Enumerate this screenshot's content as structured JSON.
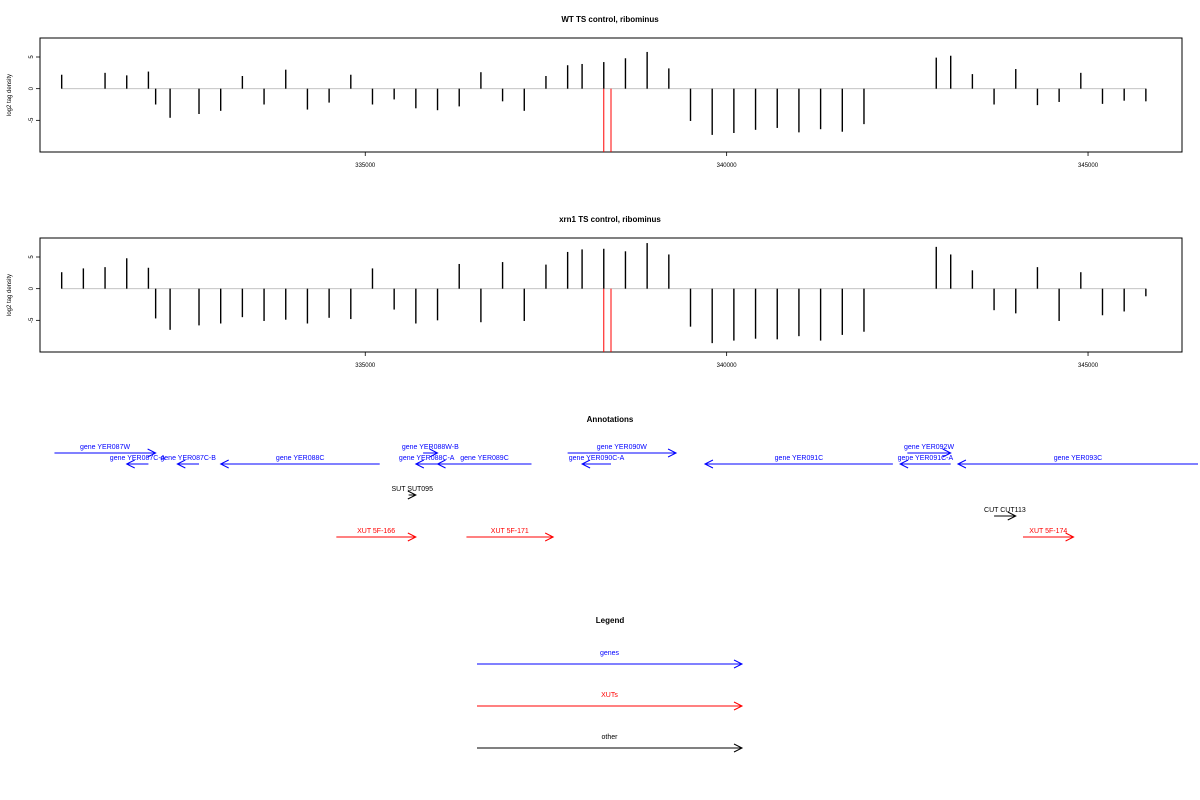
{
  "colors": {
    "gene": "#0000ff",
    "xut": "#ff0000",
    "other": "#000000",
    "marker": "#ff0000",
    "bars": "#000000"
  },
  "chart_data": [
    {
      "type": "bar",
      "title": "WT TS control, ribominus",
      "ylabel": "log2 tag density",
      "xlim": [
        330500,
        346300
      ],
      "ylim": [
        -10,
        8
      ],
      "x_ticks": [
        "335000",
        "340000",
        "345000"
      ],
      "y_ticks": [
        "5",
        "0",
        "-5"
      ],
      "markers": [
        338300,
        338400
      ],
      "series": [
        {
          "x": [
            330800,
            331400,
            331700,
            332000,
            332100,
            332300,
            332700,
            333000,
            333300,
            333600,
            333900,
            334200,
            334500,
            334800,
            335100,
            335400,
            335700,
            336000,
            336300,
            336600,
            336900,
            337200,
            337500,
            337800,
            338000,
            338300,
            338600,
            338900,
            339200,
            339500,
            339800,
            340100,
            340400,
            340700,
            341000,
            341300,
            341600,
            341900,
            342500,
            342900,
            343100,
            343400,
            343700,
            344000,
            344300,
            344600,
            344900,
            345200,
            345500,
            345800
          ],
          "y": [
            2.2,
            2.5,
            2.1,
            2.7,
            -2.5,
            -4.6,
            -4.0,
            -3.5,
            2.0,
            -2.5,
            3.0,
            -3.3,
            -2.2,
            2.2,
            -2.5,
            -1.7,
            -3.1,
            -3.4,
            -2.8,
            2.6,
            -2.0,
            -3.5,
            2.0,
            3.7,
            3.9,
            4.2,
            4.8,
            5.8,
            3.2,
            -5.1,
            -7.3,
            -7.0,
            -6.5,
            -6.2,
            -6.9,
            -6.4,
            -6.8,
            -5.6,
            0,
            4.9,
            5.2,
            2.3,
            -2.5,
            3.1,
            -2.6,
            -2.1,
            2.5,
            -2.4,
            -1.9,
            -2.0
          ]
        }
      ]
    },
    {
      "type": "bar",
      "title": "xrn1 TS control, ribominus",
      "ylabel": "log2 tag density",
      "xlim": [
        330500,
        346300
      ],
      "ylim": [
        -10,
        8
      ],
      "x_ticks": [
        "335000",
        "340000",
        "345000"
      ],
      "y_ticks": [
        "5",
        "0",
        "-5"
      ],
      "markers": [
        338300,
        338400
      ],
      "series": [
        {
          "x": [
            330800,
            331100,
            331400,
            331700,
            332000,
            332100,
            332300,
            332700,
            333000,
            333300,
            333600,
            333900,
            334200,
            334500,
            334800,
            335100,
            335400,
            335700,
            336000,
            336300,
            336600,
            336900,
            337200,
            337500,
            337800,
            338000,
            338300,
            338600,
            338900,
            339200,
            339500,
            339800,
            340100,
            340400,
            340700,
            341000,
            341300,
            341600,
            341900,
            342500,
            342900,
            343100,
            343400,
            343700,
            344000,
            344300,
            344600,
            344900,
            345200,
            345500,
            345800
          ],
          "y": [
            2.6,
            3.2,
            3.4,
            4.8,
            3.3,
            -4.7,
            -6.5,
            -5.8,
            -5.5,
            -4.5,
            -5.1,
            -4.9,
            -5.5,
            -4.6,
            -4.8,
            3.2,
            -3.3,
            -5.5,
            -5.0,
            3.9,
            -5.3,
            4.2,
            -5.1,
            3.8,
            5.8,
            6.2,
            6.3,
            5.9,
            7.2,
            5.4,
            -6.0,
            -8.6,
            -8.2,
            -7.9,
            -8.0,
            -7.5,
            -8.2,
            -7.3,
            -6.8,
            0,
            6.6,
            5.4,
            2.9,
            -3.4,
            -3.9,
            3.4,
            -5.1,
            2.6,
            -4.2,
            -3.6,
            -1.2
          ]
        }
      ]
    }
  ],
  "annotations": {
    "title": "Annotations",
    "features": [
      {
        "label": "gene YER087W",
        "cls": "gene",
        "row": 0,
        "start": 330700,
        "end": 332100,
        "strand": "+"
      },
      {
        "label": "gene YER087C-A",
        "cls": "gene",
        "row": 1,
        "start": 332000,
        "end": 331700,
        "strand": "-"
      },
      {
        "label": "gene YER087C-B",
        "cls": "gene",
        "row": 1,
        "start": 332700,
        "end": 332400,
        "strand": "-"
      },
      {
        "label": "gene YER088C",
        "cls": "gene",
        "row": 1,
        "start": 335200,
        "end": 333000,
        "strand": "-"
      },
      {
        "label": "gene YER088W-B",
        "cls": "gene",
        "row": 0,
        "start": 335800,
        "end": 336000,
        "strand": "+"
      },
      {
        "label": "gene YER088C-A",
        "cls": "gene",
        "row": 1,
        "start": 336000,
        "end": 335700,
        "strand": "-"
      },
      {
        "label": "gene YER089C",
        "cls": "gene",
        "row": 1,
        "start": 337300,
        "end": 336000,
        "strand": "-"
      },
      {
        "label": "gene YER090W",
        "cls": "gene",
        "row": 0,
        "start": 337800,
        "end": 339300,
        "strand": "+"
      },
      {
        "label": "gene YER090C-A",
        "cls": "gene",
        "row": 1,
        "start": 338400,
        "end": 338000,
        "strand": "-"
      },
      {
        "label": "gene YER091C",
        "cls": "gene",
        "row": 1,
        "start": 342300,
        "end": 339700,
        "strand": "-"
      },
      {
        "label": "gene YER091C-A",
        "cls": "gene",
        "row": 1,
        "start": 343100,
        "end": 342400,
        "strand": "-"
      },
      {
        "label": "gene YER092W",
        "cls": "gene",
        "row": 0,
        "start": 342500,
        "end": 343100,
        "strand": "+"
      },
      {
        "label": "gene YER093C",
        "cls": "gene",
        "row": 1,
        "start": 346700,
        "end": 343200,
        "strand": "-"
      },
      {
        "label": "SUT SUT095",
        "cls": "other",
        "row": 2,
        "start": 335600,
        "end": 335700,
        "strand": "+"
      },
      {
        "label": "CUT CUT113",
        "cls": "other",
        "row": 3,
        "start": 343700,
        "end": 344000,
        "strand": "+"
      },
      {
        "label": "XUT 5F-166",
        "cls": "xut",
        "row": 4,
        "start": 334600,
        "end": 335700,
        "strand": "+"
      },
      {
        "label": "XUT 5F-171",
        "cls": "xut",
        "row": 4,
        "start": 336400,
        "end": 337600,
        "strand": "+"
      },
      {
        "label": "XUT 5F-174",
        "cls": "xut",
        "row": 4,
        "start": 344100,
        "end": 344800,
        "strand": "+"
      }
    ]
  },
  "legend": {
    "title": "Legend",
    "items": [
      {
        "label": "genes",
        "cls": "gene"
      },
      {
        "label": "XUTs",
        "cls": "xut"
      },
      {
        "label": "other",
        "cls": "other"
      }
    ]
  }
}
